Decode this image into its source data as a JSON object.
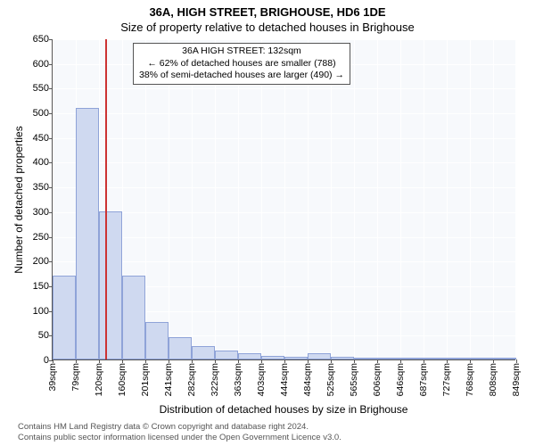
{
  "title_line1": "36A, HIGH STREET, BRIGHOUSE, HD6 1DE",
  "title_line2": "Size of property relative to detached houses in Brighouse",
  "chart": {
    "type": "histogram",
    "background_color": "#f7f9fc",
    "grid_color": "#ffffff",
    "bar_fill": "#cfd9f0",
    "bar_border": "#8fa3d8",
    "axis_color": "#555555",
    "refline_color": "#cc3333",
    "refline_x_sqm": 132,
    "ylim": [
      0,
      650
    ],
    "ytick_step": 50,
    "x_start_sqm": 39,
    "x_end_sqm": 849,
    "x_tick_step_sqm": 40.5,
    "x_tick_labels": [
      "39sqm",
      "79sqm",
      "120sqm",
      "160sqm",
      "201sqm",
      "241sqm",
      "282sqm",
      "322sqm",
      "363sqm",
      "403sqm",
      "444sqm",
      "484sqm",
      "525sqm",
      "565sqm",
      "606sqm",
      "646sqm",
      "687sqm",
      "727sqm",
      "768sqm",
      "808sqm",
      "849sqm"
    ],
    "bar_counts": [
      170,
      510,
      300,
      170,
      75,
      45,
      28,
      18,
      12,
      8,
      6,
      12,
      5,
      3,
      2,
      2,
      1,
      1,
      1,
      1
    ],
    "ylabel": "Number of detached properties",
    "xlabel": "Distribution of detached houses by size in Brighouse",
    "tick_fontsize": 11,
    "label_fontsize": 12,
    "title_fontsize": 13
  },
  "annotation": {
    "line1": "36A HIGH STREET: 132sqm",
    "line2": "← 62% of detached houses are smaller (788)",
    "line3": "38% of semi-detached houses are larger (490) →"
  },
  "footer": {
    "line1": "Contains HM Land Registry data © Crown copyright and database right 2024.",
    "line2": "Contains public sector information licensed under the Open Government Licence v3.0."
  }
}
